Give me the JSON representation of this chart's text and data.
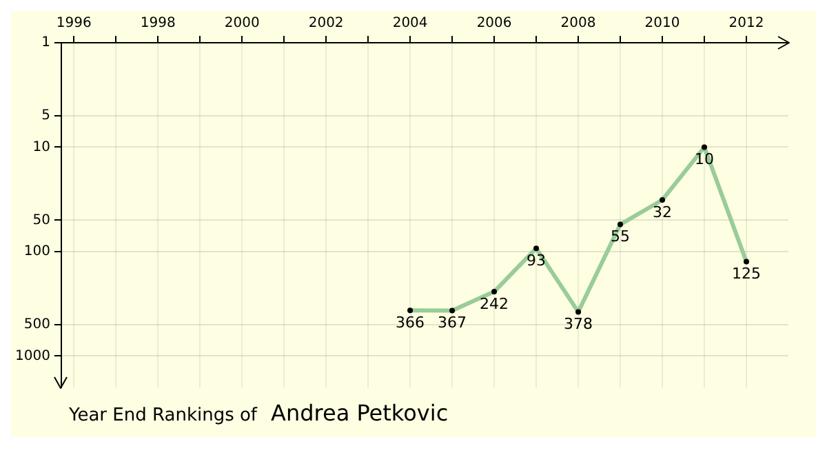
{
  "chart_data": {
    "type": "line",
    "title": "Year End Rankings of",
    "subtitle": "Andrea Petkovic",
    "x": [
      2004,
      2005,
      2006,
      2007,
      2008,
      2009,
      2010,
      2011,
      2012
    ],
    "series": [
      {
        "color": "#99cc99",
        "values": [
          366,
          367,
          242,
          93,
          378,
          55,
          32,
          10,
          125
        ]
      }
    ],
    "xlim": [
      1995.7,
      2013
    ],
    "xticks": [
      1996,
      {
        "value": 1997,
        "label": null
      },
      1998,
      {
        "value": 1999,
        "label": null
      },
      2000,
      {
        "value": 2001,
        "label": null
      },
      2002,
      {
        "value": 2003,
        "label": null
      },
      2004,
      {
        "value": 2005,
        "label": null
      },
      2006,
      {
        "value": 2007,
        "label": null
      },
      2008,
      {
        "value": 2009,
        "label": null
      },
      2010,
      {
        "value": 2011,
        "label": null
      },
      2012
    ],
    "ylim": [
      2000,
      1
    ],
    "yticks": [
      1,
      5,
      10,
      50,
      100,
      500,
      1000
    ],
    "log": "y",
    "grid": true,
    "legend": false,
    "marker": "circle",
    "line_style": "solid",
    "data_labels": true
  }
}
